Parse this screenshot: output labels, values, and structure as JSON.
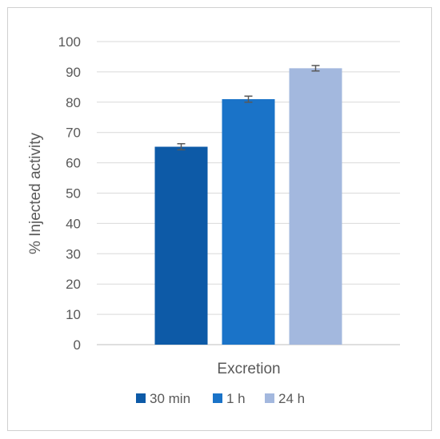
{
  "chart_data": {
    "type": "bar",
    "title": "",
    "xlabel": "",
    "ylabel": "% Injected activity",
    "categories": [
      "Excretion"
    ],
    "ylim": [
      0,
      100
    ],
    "yticks": [
      0,
      10,
      20,
      30,
      40,
      50,
      60,
      70,
      80,
      90,
      100
    ],
    "grid": true,
    "legend_position": "bottom",
    "series": [
      {
        "name": "30 min",
        "values": [
          65.3
        ],
        "error": [
          1.0
        ],
        "color": "#0d5aa7"
      },
      {
        "name": "1 h",
        "values": [
          81.0
        ],
        "error": [
          1.0
        ],
        "color": "#1a73c8"
      },
      {
        "name": "24 h",
        "values": [
          91.2
        ],
        "error": [
          0.9
        ],
        "color": "#a3b8de"
      }
    ]
  }
}
